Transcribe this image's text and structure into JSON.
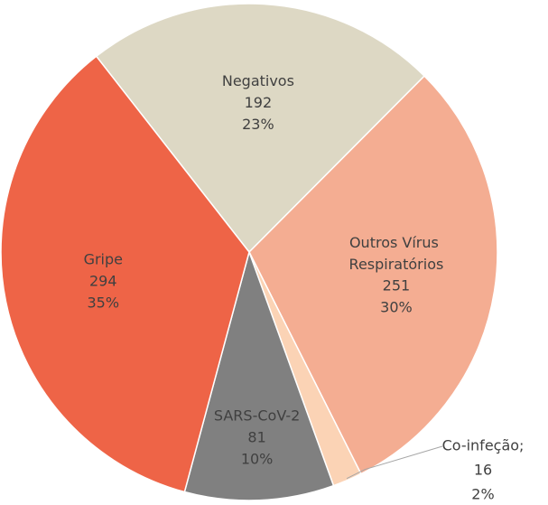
{
  "chart_data": {
    "type": "pie",
    "categories": [
      "Negativos",
      "Outros Vírus Respiratórios",
      "Co-infeção;",
      "SARS-CoV-2",
      "Gripe"
    ],
    "values": [
      192,
      251,
      16,
      81,
      294
    ],
    "percent_labels": [
      "23%",
      "30%",
      "2%",
      "10%",
      "35%"
    ],
    "colors": [
      "#ddd8c4",
      "#f4ad92",
      "#fbd3b5",
      "#808080",
      "#ee6447"
    ]
  }
}
